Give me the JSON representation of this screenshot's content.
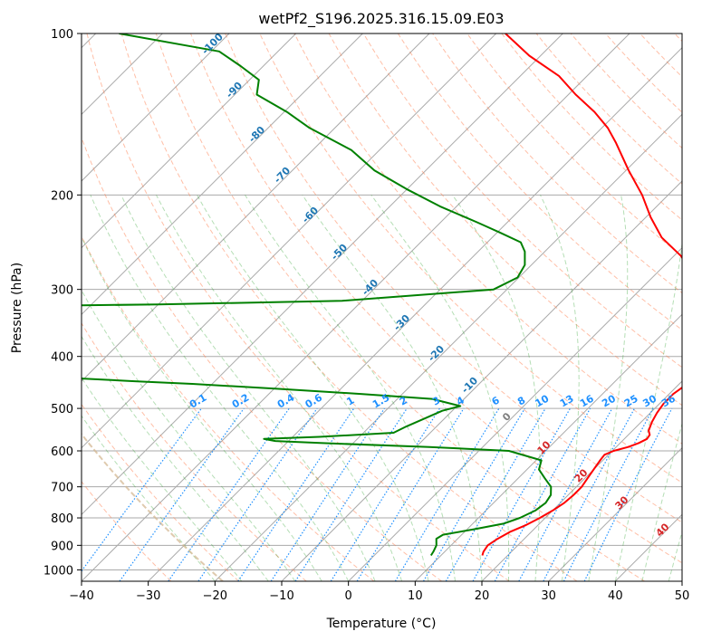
{
  "chart_data": {
    "type": "line",
    "title": "wetPf2_S196.2025.316.15.09.E03",
    "xlabel": "Temperature (°C)",
    "ylabel": "Pressure (hPa)",
    "xlim": [
      -40,
      50
    ],
    "ylim": [
      1050,
      100
    ],
    "y_scale": "log",
    "skew": 45,
    "grid": true,
    "x_ticks": [
      -40,
      -30,
      -20,
      -10,
      0,
      10,
      20,
      30,
      40,
      50
    ],
    "x_tick_labels": [
      "−40",
      "−30",
      "−20",
      "−10",
      "0",
      "10",
      "20",
      "30",
      "40",
      "50"
    ],
    "y_ticks": [
      1000,
      900,
      800,
      700,
      600,
      500,
      400,
      300,
      200,
      100
    ],
    "y_tick_labels": [
      "1000",
      "900",
      "800",
      "700",
      "600",
      "500",
      "400",
      "300",
      "200",
      "100"
    ],
    "colors": {
      "temperature": "#ff0000",
      "dewpoint": "#008000",
      "isotherm": "#aaaaaa",
      "isobar": "#aaaaaa",
      "dry_adiabat": "#ff7f50",
      "moist_adiabat": "#2ca02c",
      "mixing_ratio": "#1e90ff",
      "bold_adiabat": "#d2b48c",
      "label_dry": "#d62728",
      "label_moist_cold": "#1f77b4",
      "label_zero": "#808080"
    },
    "series": [
      {
        "role": "temperature",
        "pressure": [
          940,
          925,
          900,
          875,
          850,
          825,
          800,
          775,
          750,
          725,
          700,
          675,
          650,
          625,
          610,
          600,
          590,
          580,
          570,
          560,
          550,
          530,
          510,
          500,
          490,
          470,
          450,
          430,
          410,
          400,
          380,
          360,
          340,
          320,
          300,
          280,
          260,
          240,
          220,
          200,
          180,
          160,
          150,
          140,
          130,
          120,
          110,
          100
        ],
        "temperature": [
          16.2,
          15.8,
          15.5,
          16,
          16.8,
          18.2,
          19.2,
          20,
          20.6,
          20.8,
          20.8,
          20.4,
          20,
          19.6,
          19.4,
          20.2,
          21.8,
          22.8,
          23.4,
          23.2,
          22.4,
          21.6,
          21,
          20.8,
          20.6,
          20.6,
          21.2,
          21.4,
          21,
          19.8,
          17.5,
          15.2,
          12.9,
          10.5,
          8.3,
          5.3,
          1.1,
          -4.6,
          -9.3,
          -13.9,
          -19.6,
          -25.6,
          -29.1,
          -33.5,
          -38.9,
          -44.2,
          -51.7,
          -58.6
        ]
      },
      {
        "role": "dewpoint",
        "pressure": [
          940,
          925,
          900,
          875,
          860,
          840,
          820,
          800,
          775,
          750,
          725,
          700,
          675,
          650,
          625,
          600,
          590,
          580,
          575,
          570,
          565,
          555,
          540,
          520,
          505,
          495,
          480,
          470,
          460,
          450,
          445,
          440,
          435,
          432,
          430,
          425,
          420,
          350,
          325,
          320,
          315,
          300,
          285,
          270,
          255,
          245,
          235,
          225,
          210,
          195,
          180,
          165,
          150,
          140,
          130,
          122,
          115,
          108,
          100
        ],
        "temperature": [
          8.5,
          8.3,
          7.8,
          6.8,
          7.2,
          11,
          14.6,
          16.2,
          17.4,
          17.8,
          17.4,
          16.2,
          14,
          11.8,
          10.8,
          4.5,
          -8,
          -25,
          -32,
          -34,
          -26,
          -15.5,
          -14.5,
          -12.8,
          -11.5,
          -9.5,
          -14.8,
          -26,
          -39,
          -53,
          -62,
          -70,
          -75,
          -80,
          -95,
          -110,
          -130,
          -140,
          -120,
          -70,
          -43,
          -22,
          -20.2,
          -21,
          -23,
          -25,
          -29.6,
          -34.5,
          -42.5,
          -50.1,
          -57.7,
          -64.2,
          -73.8,
          -79.6,
          -86.7,
          -88.6,
          -93.4,
          -98.8,
          -116.5
        ]
      }
    ],
    "mixing_ratio_labels": [
      "0.1",
      "0.2",
      "0.4",
      "0.6",
      "1",
      "1.5",
      "2",
      "3",
      "4",
      "6",
      "8",
      "10",
      "13",
      "16",
      "20",
      "25",
      "30",
      "36"
    ],
    "mixing_ratio_values": [
      0.1,
      0.2,
      0.4,
      0.6,
      1,
      1.5,
      2,
      3,
      4,
      6,
      8,
      10,
      13,
      16,
      20,
      25,
      30,
      36
    ],
    "moist_adiabat_labels": [
      "-100",
      "-90",
      "-80",
      "-70",
      "-60",
      "-50",
      "-40",
      "-30",
      "-20",
      "-10",
      "0",
      "10",
      "20",
      "30",
      "40"
    ]
  }
}
